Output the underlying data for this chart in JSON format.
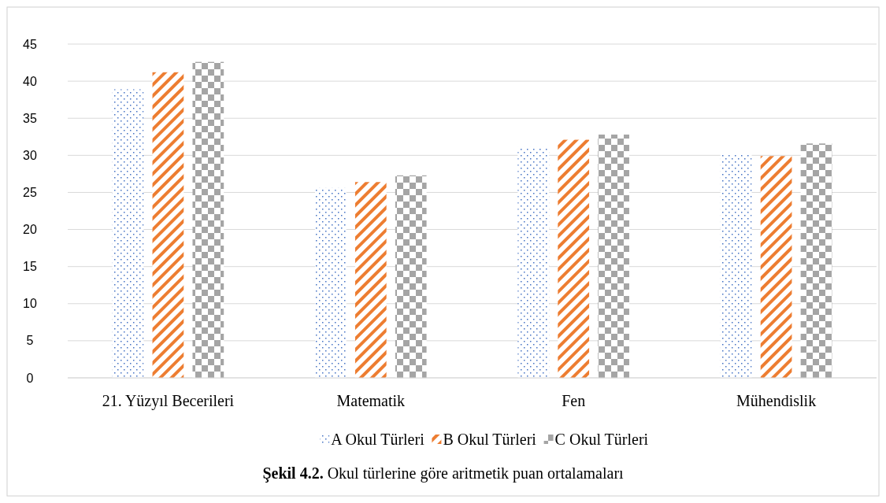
{
  "chart_data": {
    "type": "bar",
    "categories": [
      "21. Yüzyıl Becerileri",
      "Matematik",
      "Fen",
      "Mühendislik"
    ],
    "series": [
      {
        "name": "A Okul Türleri",
        "color": "#4472c4",
        "values": [
          38.9,
          25.6,
          31.1,
          30.2
        ]
      },
      {
        "name": "B Okul Türleri",
        "color": "#ed7d31",
        "values": [
          41.2,
          26.4,
          32.1,
          29.9
        ]
      },
      {
        "name": "C Okul Türleri",
        "color": "#a5a5a5",
        "values": [
          42.6,
          27.3,
          32.8,
          31.6
        ]
      }
    ],
    "ylim": [
      0,
      45
    ],
    "yticks": [
      0,
      5,
      10,
      15,
      20,
      25,
      30,
      35,
      40,
      45
    ],
    "grid": "y",
    "legend": "bottom",
    "annotations": [
      "Şekil 4.2. Okul türlerine göre aritmetik puan ortalamaları"
    ]
  }
}
